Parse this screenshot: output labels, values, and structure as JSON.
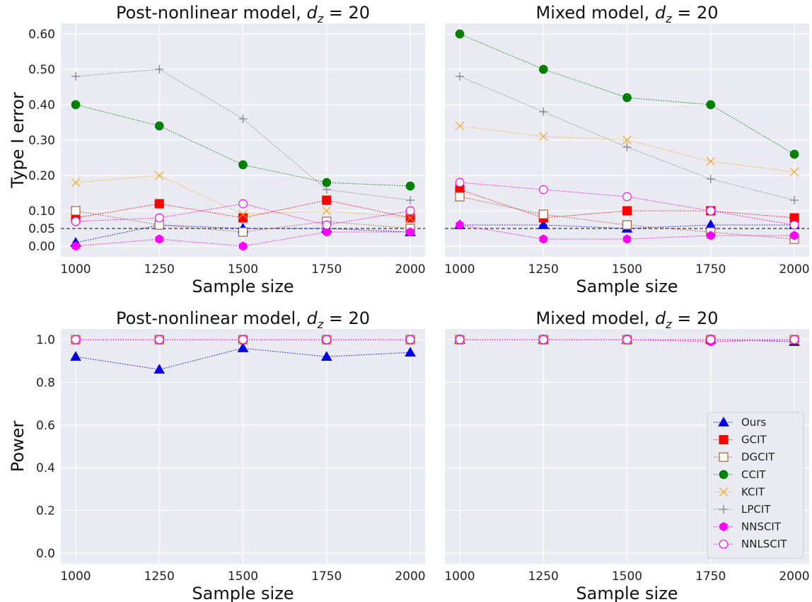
{
  "chart_data": [
    {
      "type": "line",
      "title_main": "Post-nonlinear model, ",
      "title_math": "d",
      "title_sub": "z",
      "title_tail": " = 20",
      "xlabel": "Sample size",
      "ylabel": "Type I error",
      "x": [
        1000,
        1250,
        1500,
        1750,
        2000
      ],
      "xticks": [
        "1000",
        "1250",
        "1500",
        "1750",
        "2000"
      ],
      "ylim": [
        -0.03,
        0.63
      ],
      "yticks": [
        0.0,
        0.05,
        0.1,
        0.2,
        0.3,
        0.4,
        0.5,
        0.6
      ],
      "ytick_labels": [
        "0.00",
        "0.05",
        "0.10",
        "0.20",
        "0.30",
        "0.40",
        "0.50",
        "0.60"
      ],
      "reference_line": 0.05,
      "series": [
        {
          "name": "Ours",
          "values": [
            0.01,
            0.06,
            0.05,
            0.05,
            0.04
          ]
        },
        {
          "name": "GCIT",
          "values": [
            0.08,
            0.12,
            0.08,
            0.13,
            0.08
          ]
        },
        {
          "name": "DGCIT",
          "values": [
            0.1,
            0.06,
            0.04,
            0.07,
            0.05
          ]
        },
        {
          "name": "CCIT",
          "values": [
            0.4,
            0.34,
            0.23,
            0.18,
            0.17
          ]
        },
        {
          "name": "KCIT",
          "values": [
            0.18,
            0.2,
            0.09,
            0.1,
            0.08
          ]
        },
        {
          "name": "LPCIT",
          "values": [
            0.48,
            0.5,
            0.36,
            0.16,
            0.13
          ]
        },
        {
          "name": "NNSCIT",
          "values": [
            0.0,
            0.02,
            0.0,
            0.04,
            0.04
          ]
        },
        {
          "name": "NNLSCIT",
          "values": [
            0.07,
            0.08,
            0.12,
            0.06,
            0.1
          ]
        }
      ]
    },
    {
      "type": "line",
      "title_main": "Mixed model, ",
      "title_math": "d",
      "title_sub": "z",
      "title_tail": " = 20",
      "xlabel": "Sample size",
      "ylabel": "",
      "x": [
        1000,
        1250,
        1500,
        1750,
        2000
      ],
      "xticks": [
        "1000",
        "1250",
        "1500",
        "1750",
        "2000"
      ],
      "ylim": [
        -0.03,
        0.63
      ],
      "yticks": [
        0.0,
        0.05,
        0.1,
        0.2,
        0.3,
        0.4,
        0.5,
        0.6
      ],
      "ytick_labels": [],
      "reference_line": 0.05,
      "series": [
        {
          "name": "Ours",
          "values": [
            0.06,
            0.06,
            0.05,
            0.06,
            0.06
          ]
        },
        {
          "name": "GCIT",
          "values": [
            0.16,
            0.08,
            0.1,
            0.1,
            0.08
          ]
        },
        {
          "name": "DGCIT",
          "values": [
            0.14,
            0.09,
            0.06,
            0.04,
            0.02
          ]
        },
        {
          "name": "CCIT",
          "values": [
            0.6,
            0.5,
            0.42,
            0.4,
            0.26
          ]
        },
        {
          "name": "KCIT",
          "values": [
            0.34,
            0.31,
            0.3,
            0.24,
            0.21
          ]
        },
        {
          "name": "LPCIT",
          "values": [
            0.48,
            0.38,
            0.28,
            0.19,
            0.13
          ]
        },
        {
          "name": "NNSCIT",
          "values": [
            0.06,
            0.02,
            0.02,
            0.03,
            0.03
          ]
        },
        {
          "name": "NNLSCIT",
          "values": [
            0.18,
            0.16,
            0.14,
            0.1,
            0.06
          ]
        }
      ]
    },
    {
      "type": "line",
      "title_main": "Post-nonlinear model, ",
      "title_math": "d",
      "title_sub": "z",
      "title_tail": " = 20",
      "xlabel": "Sample size",
      "ylabel": "Power",
      "x": [
        1000,
        1250,
        1500,
        1750,
        2000
      ],
      "xticks": [
        "1000",
        "1250",
        "1500",
        "1750",
        "2000"
      ],
      "ylim": [
        -0.05,
        1.05
      ],
      "yticks": [
        0.0,
        0.2,
        0.4,
        0.6,
        0.8,
        1.0
      ],
      "ytick_labels": [
        "0.0",
        "0.2",
        "0.4",
        "0.6",
        "0.8",
        "1.0"
      ],
      "series": [
        {
          "name": "Ours",
          "values": [
            0.92,
            0.86,
            0.96,
            0.92,
            0.94
          ]
        },
        {
          "name": "GCIT",
          "values": [
            1.0,
            1.0,
            1.0,
            1.0,
            1.0
          ]
        },
        {
          "name": "DGCIT",
          "values": [
            1.0,
            1.0,
            1.0,
            1.0,
            1.0
          ]
        },
        {
          "name": "CCIT",
          "values": [
            1.0,
            1.0,
            1.0,
            1.0,
            1.0
          ]
        },
        {
          "name": "KCIT",
          "values": [
            1.0,
            1.0,
            1.0,
            1.0,
            1.0
          ]
        },
        {
          "name": "LPCIT",
          "values": [
            1.0,
            1.0,
            1.0,
            1.0,
            1.0
          ]
        },
        {
          "name": "NNSCIT",
          "values": [
            1.0,
            1.0,
            1.0,
            1.0,
            1.0
          ]
        },
        {
          "name": "NNLSCIT",
          "values": [
            1.0,
            1.0,
            1.0,
            1.0,
            1.0
          ]
        }
      ]
    },
    {
      "type": "line",
      "title_main": "Mixed model, ",
      "title_math": "d",
      "title_sub": "z",
      "title_tail": " = 20",
      "xlabel": "Sample size",
      "ylabel": "",
      "x": [
        1000,
        1250,
        1500,
        1750,
        2000
      ],
      "xticks": [
        "1000",
        "1250",
        "1500",
        "1750",
        "2000"
      ],
      "ylim": [
        -0.05,
        1.05
      ],
      "yticks": [
        0.0,
        0.2,
        0.4,
        0.6,
        0.8,
        1.0
      ],
      "ytick_labels": [],
      "legend": "lower-right",
      "series": [
        {
          "name": "Ours",
          "values": [
            1.0,
            1.0,
            1.0,
            1.0,
            0.99
          ]
        },
        {
          "name": "GCIT",
          "values": [
            1.0,
            1.0,
            1.0,
            1.0,
            1.0
          ]
        },
        {
          "name": "DGCIT",
          "values": [
            1.0,
            1.0,
            1.0,
            1.0,
            1.0
          ]
        },
        {
          "name": "CCIT",
          "values": [
            1.0,
            1.0,
            1.0,
            1.0,
            1.0
          ]
        },
        {
          "name": "KCIT",
          "values": [
            1.0,
            1.0,
            1.0,
            1.0,
            1.0
          ]
        },
        {
          "name": "LPCIT",
          "values": [
            1.0,
            1.0,
            1.0,
            1.0,
            1.0
          ]
        },
        {
          "name": "NNSCIT",
          "values": [
            1.0,
            1.0,
            1.0,
            0.99,
            1.0
          ]
        },
        {
          "name": "NNLSCIT",
          "values": [
            1.0,
            1.0,
            1.0,
            1.0,
            1.0
          ]
        }
      ]
    }
  ],
  "series_styles": {
    "Ours": {
      "color": "#0000ee",
      "marker": "triangle",
      "fill": "filled"
    },
    "GCIT": {
      "color": "#ff0000",
      "marker": "square",
      "fill": "filled"
    },
    "DGCIT": {
      "color": "#a0522d",
      "marker": "square",
      "fill": "open"
    },
    "CCIT": {
      "color": "#008000",
      "marker": "circle",
      "fill": "filled"
    },
    "KCIT": {
      "color": "#f5a623",
      "marker": "x",
      "fill": "line"
    },
    "LPCIT": {
      "color": "#808080",
      "marker": "plus",
      "fill": "line"
    },
    "NNSCIT": {
      "color": "#ff00ff",
      "marker": "hexagon",
      "fill": "filled"
    },
    "NNLSCIT": {
      "color": "#ff00ff",
      "marker": "circle",
      "fill": "open"
    }
  },
  "colors": {
    "axes_background": "#eaeaf2",
    "grid": "#ffffff",
    "reference_line": "#333333"
  }
}
